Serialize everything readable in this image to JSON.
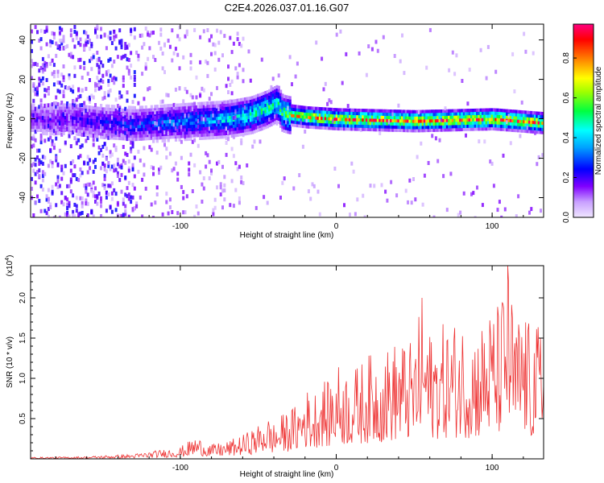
{
  "figure": {
    "title": "C2E4.2026.037.01.16.G07"
  },
  "chart_data": [
    {
      "type": "heatmap",
      "name": "spectrogram",
      "xlabel": "Height of straight line (km)",
      "ylabel": "Frequency (Hz)",
      "xlim": [
        -196,
        133
      ],
      "ylim": [
        -50,
        48
      ],
      "xticks": [
        -100,
        0,
        100
      ],
      "yticks": [
        -40,
        -20,
        0,
        20,
        40
      ],
      "xtick_labels": [
        "-100",
        "0",
        "100"
      ],
      "ytick_labels": [
        "-40",
        "-20",
        "0",
        "20",
        "40"
      ],
      "colorbar": {
        "label": "Normalized spectral amplitude",
        "range": [
          0,
          0.97
        ],
        "ticks": [
          0.0,
          0.2,
          0.4,
          0.6,
          0.8
        ],
        "tick_labels": [
          "0.0",
          "0.2",
          "0.4",
          "0.6",
          "0.8"
        ],
        "colormap": [
          "#e6e6fa",
          "#8000ff",
          "#0000ff",
          "#00ffff",
          "#00ff00",
          "#ffff00",
          "#ff8000",
          "#ff0000",
          "#ff0080"
        ]
      },
      "ridge": {
        "x": [
          -196,
          -170,
          -150,
          -130,
          -110,
          -90,
          -70,
          -55,
          -45,
          -38,
          -35,
          -30,
          -20,
          0,
          50,
          100,
          133
        ],
        "center_hz": [
          0,
          0,
          -2,
          -3,
          -2,
          -1,
          0,
          2,
          5,
          8,
          3,
          2,
          1,
          0,
          -1,
          0,
          -2
        ],
        "peak_amplitude": [
          0.2,
          0.25,
          0.3,
          0.35,
          0.4,
          0.45,
          0.55,
          0.6,
          0.65,
          0.6,
          0.7,
          0.8,
          0.9,
          0.95,
          0.95,
          0.97,
          0.95
        ]
      }
    },
    {
      "type": "line",
      "name": "snr",
      "xlabel": "Height of straight line (km)",
      "ylabel": "SNR (10 * v/v)",
      "y_multiplier": "(x10^4)",
      "y_multiplier_base": "(x10",
      "y_multiplier_exp": "4",
      "y_multiplier_close": ")",
      "xlim": [
        -196,
        133
      ],
      "ylim": [
        0,
        2.4
      ],
      "xticks": [
        -100,
        0,
        100
      ],
      "yticks": [
        0.5,
        1.0,
        1.5,
        2.0
      ],
      "xtick_labels": [
        "-100",
        "0",
        "100"
      ],
      "ytick_labels": [
        "0.5",
        "1.0",
        "1.5",
        "2.0"
      ],
      "line_color": "#ee3333",
      "series": [
        {
          "name": "SNR",
          "x": [
            -196,
            -160,
            -130,
            -110,
            -100,
            -90,
            -80,
            -70,
            -60,
            -50,
            -45,
            -40,
            -35,
            -30,
            -25,
            -20,
            -15,
            -10,
            -5,
            0,
            10,
            20,
            30,
            40,
            50,
            55,
            60,
            70,
            80,
            90,
            100,
            105,
            110,
            115,
            120,
            125,
            130,
            133
          ],
          "y_envelope": [
            0.02,
            0.03,
            0.06,
            0.12,
            0.15,
            0.28,
            0.18,
            0.22,
            0.3,
            0.42,
            0.55,
            0.45,
            0.55,
            0.62,
            0.68,
            0.9,
            0.8,
            1.05,
            0.95,
            1.2,
            1.1,
            1.3,
            1.35,
            1.5,
            1.45,
            2.0,
            1.6,
            1.7,
            1.75,
            1.65,
            1.9,
            1.95,
            2.4,
            1.7,
            1.95,
            1.6,
            1.7,
            1.7
          ],
          "peaks": [
            {
              "x": 55,
              "y": 2.0
            },
            {
              "x": 110,
              "y": 2.4
            }
          ]
        }
      ]
    }
  ]
}
